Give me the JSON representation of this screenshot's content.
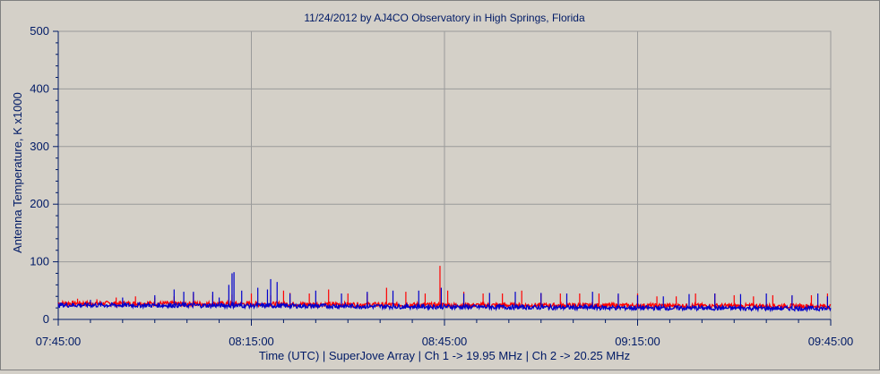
{
  "chart_data": {
    "type": "line",
    "title": "11/24/2012  by  AJ4CO Observatory  in  High Springs, Florida",
    "xlabel": "Time (UTC)  |  SuperJove Array  |  Ch 1 -> 19.95 MHz  |  Ch 2 -> 20.25 MHz",
    "ylabel": "Antenna Temperature, K x1000",
    "x_range": [
      "07:45:00",
      "09:45:00"
    ],
    "ylim": [
      0,
      500
    ],
    "xticks": [
      "07:45:00",
      "08:15:00",
      "08:45:00",
      "09:15:00",
      "09:45:00"
    ],
    "yticks": [
      0,
      100,
      200,
      300,
      400,
      500
    ],
    "grid": true,
    "series": [
      {
        "name": "Ch 1 -> 19.95 MHz",
        "color": "#ff0000",
        "baseline": [
          [
            0,
            28
          ],
          [
            30,
            27
          ],
          [
            60,
            25
          ],
          [
            90,
            24
          ],
          [
            120,
            23
          ]
        ],
        "spikes": [
          [
            3,
            36
          ],
          [
            6,
            35
          ],
          [
            9,
            38
          ],
          [
            12,
            40
          ],
          [
            15,
            38
          ],
          [
            18,
            40
          ],
          [
            21,
            45
          ],
          [
            24,
            42
          ],
          [
            27,
            43
          ],
          [
            30,
            45
          ],
          [
            33,
            42
          ],
          [
            35,
            50
          ],
          [
            36,
            46
          ],
          [
            39,
            45
          ],
          [
            42,
            52
          ],
          [
            45,
            45
          ],
          [
            48,
            45
          ],
          [
            51,
            55
          ],
          [
            54,
            48
          ],
          [
            57,
            45
          ],
          [
            59.3,
            93
          ],
          [
            60.5,
            50
          ],
          [
            63,
            48
          ],
          [
            66,
            45
          ],
          [
            69,
            45
          ],
          [
            72,
            50
          ],
          [
            75,
            45
          ],
          [
            78,
            45
          ],
          [
            81,
            45
          ],
          [
            84,
            45
          ],
          [
            87,
            42
          ],
          [
            90,
            45
          ],
          [
            93,
            40
          ],
          [
            96,
            40
          ],
          [
            99,
            45
          ],
          [
            102,
            45
          ],
          [
            105,
            42
          ],
          [
            108,
            40
          ],
          [
            111,
            42
          ],
          [
            114,
            40
          ],
          [
            117,
            42
          ],
          [
            119.5,
            45
          ]
        ]
      },
      {
        "name": "Ch 2 -> 20.25 MHz",
        "color": "#0000cc",
        "baseline": [
          [
            0,
            25
          ],
          [
            30,
            24
          ],
          [
            60,
            22
          ],
          [
            90,
            20
          ],
          [
            120,
            19
          ]
        ],
        "spikes": [
          [
            5,
            34
          ],
          [
            10,
            38
          ],
          [
            15,
            42
          ],
          [
            18,
            52
          ],
          [
            19.5,
            48
          ],
          [
            21,
            48
          ],
          [
            24,
            48
          ],
          [
            25,
            38
          ],
          [
            26.5,
            60
          ],
          [
            27,
            80
          ],
          [
            27.3,
            82
          ],
          [
            28.5,
            50
          ],
          [
            31,
            55
          ],
          [
            32.5,
            52
          ],
          [
            33,
            70
          ],
          [
            34,
            65
          ],
          [
            36,
            45
          ],
          [
            40,
            50
          ],
          [
            44,
            45
          ],
          [
            48,
            48
          ],
          [
            52,
            50
          ],
          [
            56,
            50
          ],
          [
            59.5,
            55
          ],
          [
            63,
            45
          ],
          [
            67,
            46
          ],
          [
            71,
            48
          ],
          [
            75,
            46
          ],
          [
            79,
            45
          ],
          [
            83,
            48
          ],
          [
            87,
            45
          ],
          [
            90,
            42
          ],
          [
            94,
            40
          ],
          [
            98,
            44
          ],
          [
            102,
            45
          ],
          [
            106,
            44
          ],
          [
            110,
            45
          ],
          [
            114,
            42
          ],
          [
            118,
            45
          ],
          [
            119.5,
            40
          ]
        ]
      }
    ]
  }
}
